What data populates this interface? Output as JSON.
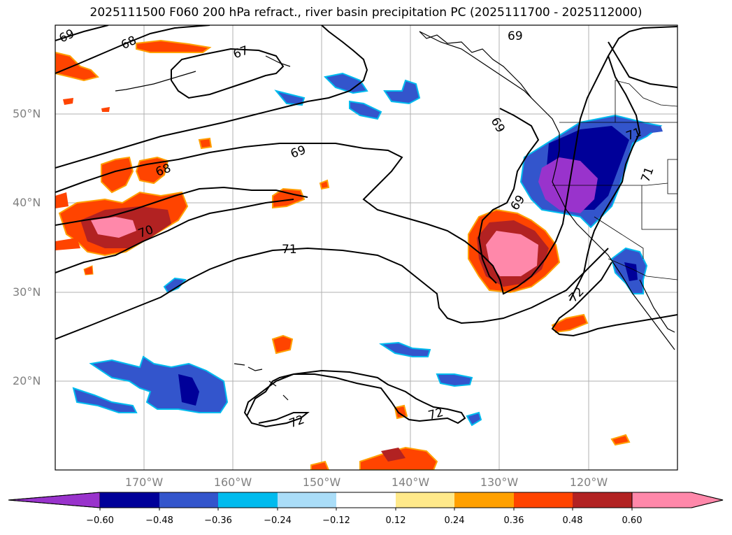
{
  "title": "2025111500 F060 200 hPa refract., river basin precipitation PC (2025111700 - 2025112000)",
  "lon_labels": [
    "170°W",
    "160°W",
    "150°W",
    "140°W",
    "130°W",
    "120°W"
  ],
  "lat_labels": [
    "50°N",
    "40°N",
    "30°N",
    "20°N"
  ],
  "contour_labels": [
    "69",
    "68",
    "67",
    "69",
    "68",
    "70",
    "69",
    "71",
    "69",
    "71",
    "72",
    "71",
    "72",
    "72",
    "69"
  ],
  "colorbar": {
    "ticks": [
      "−0.60",
      "−0.48",
      "−0.36",
      "−0.24",
      "−0.12",
      "0.12",
      "0.24",
      "0.36",
      "0.48",
      "0.60"
    ],
    "colors": [
      "#9933cc",
      "#000099",
      "#3355cc",
      "#00bbee",
      "#aaddf8",
      "#ffffff",
      "#ffe98a",
      "#ffa000",
      "#ff4400",
      "#b22222",
      "#ff88aa"
    ]
  }
}
